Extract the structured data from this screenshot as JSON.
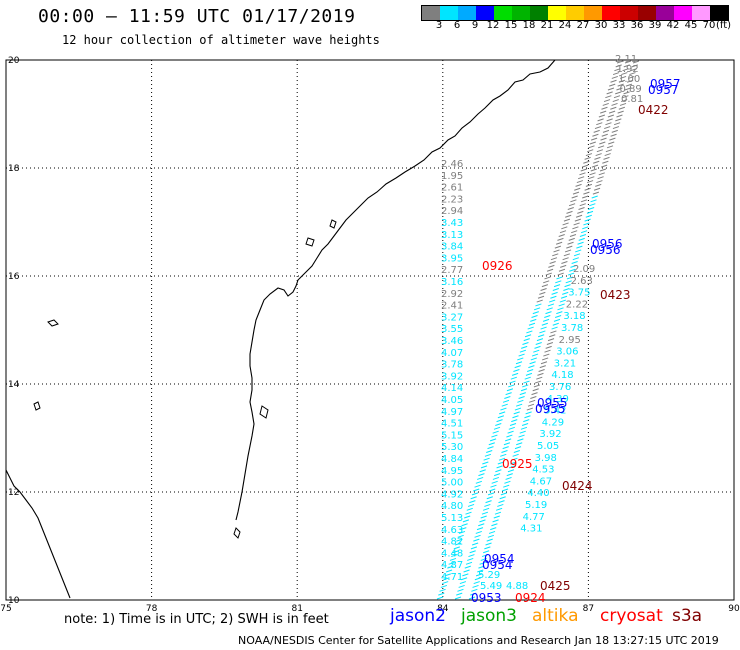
{
  "header": {
    "title": "00:00 – 11:59 UTC 01/17/2019",
    "subtitle": "12 hour collection of altimeter wave heights"
  },
  "legend": {
    "unit": "(ft)",
    "bins": [
      {
        "label": "3",
        "color": "#7f7f7f"
      },
      {
        "label": "6",
        "color": "#00e5ff"
      },
      {
        "label": "9",
        "color": "#00aaff"
      },
      {
        "label": "12",
        "color": "#0000ff"
      },
      {
        "label": "15",
        "color": "#00dd00"
      },
      {
        "label": "18",
        "color": "#00b400"
      },
      {
        "label": "21",
        "color": "#008000"
      },
      {
        "label": "24",
        "color": "#ffff00"
      },
      {
        "label": "27",
        "color": "#ffcc00"
      },
      {
        "label": "30",
        "color": "#ff9900"
      },
      {
        "label": "33",
        "color": "#ff0000"
      },
      {
        "label": "36",
        "color": "#cc0000"
      },
      {
        "label": "39",
        "color": "#990000"
      },
      {
        "label": "42",
        "color": "#990099"
      },
      {
        "label": "45",
        "color": "#ff00ff"
      },
      {
        "label": "70",
        "color": "#ff99ff"
      },
      {
        "label": "",
        "color": "#000000"
      }
    ]
  },
  "axes": {
    "lon_ticks": [
      "75",
      "78",
      "81",
      "84",
      "87",
      "90"
    ],
    "lat_ticks": [
      "10",
      "12",
      "14",
      "16",
      "18",
      "20"
    ]
  },
  "tracks": {
    "west_column": {
      "colors": [
        "#7f7f7f",
        "#7f7f7f",
        "#7f7f7f",
        "#7f7f7f",
        "#7f7f7f",
        "#00e5ff",
        "#00e5ff",
        "#00e5ff",
        "#00e5ff",
        "#7f7f7f",
        "#00e5ff",
        "#7f7f7f",
        "#7f7f7f",
        "#00e5ff",
        "#00e5ff",
        "#00e5ff",
        "#00e5ff",
        "#00e5ff",
        "#00e5ff",
        "#00e5ff",
        "#00e5ff",
        "#00e5ff",
        "#00e5ff",
        "#00e5ff",
        "#00e5ff",
        "#00e5ff",
        "#00e5ff",
        "#00e5ff",
        "#00e5ff",
        "#00e5ff",
        "#00e5ff",
        "#00e5ff",
        "#00e5ff",
        "#00e5ff",
        "#00e5ff",
        "#00e5ff"
      ],
      "values": [
        "2.46",
        "1.95",
        "2.61",
        "2.23",
        "2.94",
        "3.43",
        "3.13",
        "3.84",
        "3.95",
        "2.77",
        "3.16",
        "2.92",
        "2.41",
        "3.27",
        "3.55",
        "3.46",
        "4.07",
        "3.78",
        "3.92",
        "4.14",
        "4.05",
        "4.97",
        "4.51",
        "5.15",
        "5.30",
        "4.84",
        "4.95",
        "5.00",
        "4.92",
        "4.80",
        "5.13",
        "4.63",
        "4.82",
        "4.48",
        "4.87",
        "4.71"
      ]
    },
    "east_column": {
      "colors": [
        "#7f7f7f",
        "#7f7f7f",
        "#00e5ff",
        "#7f7f7f",
        "#00e5ff",
        "#00e5ff",
        "#7f7f7f",
        "#00e5ff",
        "#00e5ff",
        "#00e5ff",
        "#00e5ff",
        "#00e5ff",
        "#00e5ff",
        "#00e5ff",
        "#00e5ff",
        "#00e5ff",
        "#00e5ff",
        "#00e5ff",
        "#00e5ff",
        "#00e5ff",
        "#00e5ff",
        "#00e5ff",
        "#00e5ff"
      ],
      "values": [
        "2.09",
        "2.63",
        "3.75",
        "2.22",
        "3.18",
        "3.78",
        "2.95",
        "3.06",
        "3.21",
        "4.18",
        "3.76",
        "4.39",
        "5.42",
        "4.29",
        "3.92",
        "5.05",
        "3.98",
        "4.53",
        "4.67",
        "4.40",
        "5.19",
        "4.77",
        "4.31"
      ]
    },
    "inner_values": [
      "5.29",
      "5.49",
      "4.88"
    ],
    "top_track_values": [
      "2.11",
      "1.92",
      "1.00",
      "0.89",
      "0.81"
    ]
  },
  "pass_labels": [
    {
      "text": "0957",
      "color": "#0000ff"
    },
    {
      "text": "0957",
      "color": "#0000ff"
    },
    {
      "text": "0422",
      "color": "#800000"
    },
    {
      "text": "0956",
      "color": "#0000ff"
    },
    {
      "text": "0956",
      "color": "#0000ff"
    },
    {
      "text": "0926",
      "color": "#ff0000"
    },
    {
      "text": "0423",
      "color": "#800000"
    },
    {
      "text": "0955",
      "color": "#0000ff"
    },
    {
      "text": "0955",
      "color": "#0000ff"
    },
    {
      "text": "0925",
      "color": "#ff0000"
    },
    {
      "text": "0424",
      "color": "#800000"
    },
    {
      "text": "0954",
      "color": "#0000ff"
    },
    {
      "text": "0954",
      "color": "#0000ff"
    },
    {
      "text": "0425",
      "color": "#800000"
    },
    {
      "text": "0953",
      "color": "#0000ff"
    },
    {
      "text": "0924",
      "color": "#ff0000"
    }
  ],
  "footer": {
    "note": "note: 1) Time is in UTC; 2) SWH is in feet",
    "satellites": [
      {
        "name": "jason2",
        "color": "#0000ff"
      },
      {
        "name": "jason3",
        "color": "#00a000"
      },
      {
        "name": "altika",
        "color": "#ff9900"
      },
      {
        "name": "cryosat",
        "color": "#ff0000"
      },
      {
        "name": "s3a",
        "color": "#800000"
      }
    ],
    "credit": "NOAA/NESDIS Center for Satellite Applications and Research   Jan 18 13:27:15 UTC 2019"
  }
}
